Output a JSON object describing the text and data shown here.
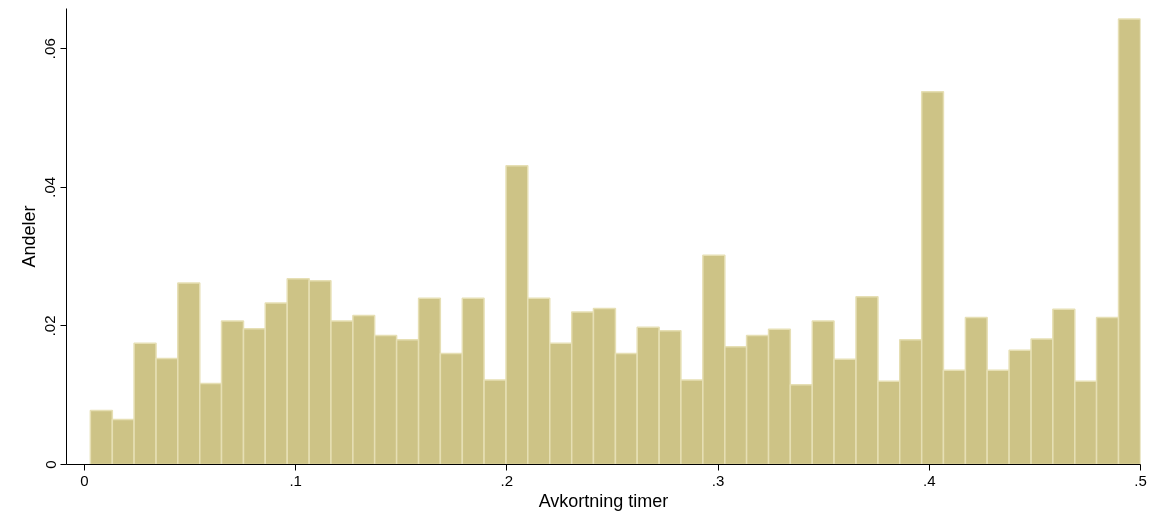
{
  "chart_data": {
    "type": "histogram",
    "xlabel": "Avkortning timer",
    "ylabel": "Andeler",
    "color": "#cdc386",
    "bins": [
      0.0028,
      0.0132,
      0.0235,
      0.0339,
      0.0442,
      0.0546,
      0.0649,
      0.0753,
      0.0856,
      0.096,
      0.1064,
      0.1167,
      0.1271,
      0.1374,
      0.1478,
      0.1582,
      0.1685,
      0.1789,
      0.1892,
      0.1996,
      0.2099,
      0.2203,
      0.2307,
      0.241,
      0.2514,
      0.2617,
      0.2721,
      0.2824,
      0.2928,
      0.3032,
      0.3135,
      0.3239,
      0.3342,
      0.3446,
      0.3549,
      0.3653,
      0.3757,
      0.386,
      0.3964,
      0.4067,
      0.4171,
      0.4274,
      0.4378,
      0.4482,
      0.4585,
      0.4689,
      0.4792,
      0.4896,
      0.5
    ],
    "values": [
      0.0078,
      0.0065,
      0.0175,
      0.0153,
      0.0262,
      0.0117,
      0.0207,
      0.0196,
      0.0233,
      0.0268,
      0.0265,
      0.0207,
      0.0215,
      0.0186,
      0.018,
      0.024,
      0.016,
      0.024,
      0.0122,
      0.0431,
      0.024,
      0.0175,
      0.022,
      0.0225,
      0.016,
      0.0198,
      0.0193,
      0.0122,
      0.0302,
      0.017,
      0.0186,
      0.0195,
      0.0115,
      0.0207,
      0.0152,
      0.0242,
      0.012,
      0.018,
      0.0538,
      0.0136,
      0.0212,
      0.0136,
      0.0165,
      0.0181,
      0.0224,
      0.012,
      0.0212,
      0.0643
    ],
    "xlim": [
      -0.0085,
      0.5
    ],
    "ylim": [
      0,
      0.0658
    ],
    "xticks": [
      0,
      {
        "value": 0.1,
        "label": ".1"
      },
      {
        "value": 0.2,
        "label": ".2"
      },
      {
        "value": 0.3,
        "label": ".3"
      },
      {
        "value": 0.4,
        "label": ".4"
      },
      {
        "value": 0.5,
        "label": ".5"
      }
    ],
    "yticks": [
      0,
      {
        "value": 0.02,
        "label": ".02"
      },
      {
        "value": 0.04,
        "label": ".04"
      },
      {
        "value": 0.06,
        "label": ".06"
      }
    ],
    "grid": false
  }
}
